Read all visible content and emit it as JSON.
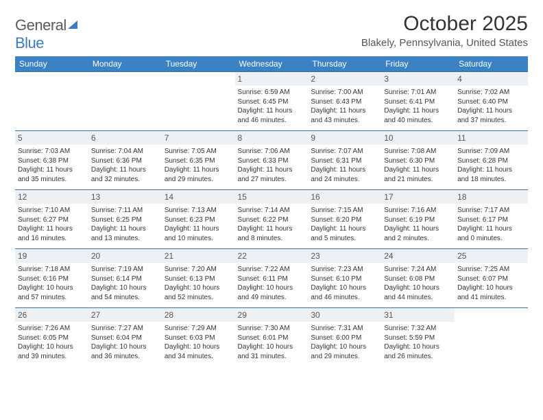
{
  "logo": {
    "text1": "General",
    "text2": "Blue"
  },
  "title": "October 2025",
  "location": "Blakely, Pennsylvania, United States",
  "colors": {
    "header_bg": "#3b82c4",
    "header_text": "#ffffff",
    "row_border": "#3b6fa0",
    "daynum_bg": "#eef1f4",
    "logo_gray": "#5a5a5a",
    "logo_blue": "#3b7bbf"
  },
  "weekdays": [
    "Sunday",
    "Monday",
    "Tuesday",
    "Wednesday",
    "Thursday",
    "Friday",
    "Saturday"
  ],
  "cells": [
    [
      null,
      null,
      null,
      {
        "n": "1",
        "sr": "6:59 AM",
        "ss": "6:45 PM",
        "dl": "11 hours and 46 minutes."
      },
      {
        "n": "2",
        "sr": "7:00 AM",
        "ss": "6:43 PM",
        "dl": "11 hours and 43 minutes."
      },
      {
        "n": "3",
        "sr": "7:01 AM",
        "ss": "6:41 PM",
        "dl": "11 hours and 40 minutes."
      },
      {
        "n": "4",
        "sr": "7:02 AM",
        "ss": "6:40 PM",
        "dl": "11 hours and 37 minutes."
      }
    ],
    [
      {
        "n": "5",
        "sr": "7:03 AM",
        "ss": "6:38 PM",
        "dl": "11 hours and 35 minutes."
      },
      {
        "n": "6",
        "sr": "7:04 AM",
        "ss": "6:36 PM",
        "dl": "11 hours and 32 minutes."
      },
      {
        "n": "7",
        "sr": "7:05 AM",
        "ss": "6:35 PM",
        "dl": "11 hours and 29 minutes."
      },
      {
        "n": "8",
        "sr": "7:06 AM",
        "ss": "6:33 PM",
        "dl": "11 hours and 27 minutes."
      },
      {
        "n": "9",
        "sr": "7:07 AM",
        "ss": "6:31 PM",
        "dl": "11 hours and 24 minutes."
      },
      {
        "n": "10",
        "sr": "7:08 AM",
        "ss": "6:30 PM",
        "dl": "11 hours and 21 minutes."
      },
      {
        "n": "11",
        "sr": "7:09 AM",
        "ss": "6:28 PM",
        "dl": "11 hours and 18 minutes."
      }
    ],
    [
      {
        "n": "12",
        "sr": "7:10 AM",
        "ss": "6:27 PM",
        "dl": "11 hours and 16 minutes."
      },
      {
        "n": "13",
        "sr": "7:11 AM",
        "ss": "6:25 PM",
        "dl": "11 hours and 13 minutes."
      },
      {
        "n": "14",
        "sr": "7:13 AM",
        "ss": "6:23 PM",
        "dl": "11 hours and 10 minutes."
      },
      {
        "n": "15",
        "sr": "7:14 AM",
        "ss": "6:22 PM",
        "dl": "11 hours and 8 minutes."
      },
      {
        "n": "16",
        "sr": "7:15 AM",
        "ss": "6:20 PM",
        "dl": "11 hours and 5 minutes."
      },
      {
        "n": "17",
        "sr": "7:16 AM",
        "ss": "6:19 PM",
        "dl": "11 hours and 2 minutes."
      },
      {
        "n": "18",
        "sr": "7:17 AM",
        "ss": "6:17 PM",
        "dl": "11 hours and 0 minutes."
      }
    ],
    [
      {
        "n": "19",
        "sr": "7:18 AM",
        "ss": "6:16 PM",
        "dl": "10 hours and 57 minutes."
      },
      {
        "n": "20",
        "sr": "7:19 AM",
        "ss": "6:14 PM",
        "dl": "10 hours and 54 minutes."
      },
      {
        "n": "21",
        "sr": "7:20 AM",
        "ss": "6:13 PM",
        "dl": "10 hours and 52 minutes."
      },
      {
        "n": "22",
        "sr": "7:22 AM",
        "ss": "6:11 PM",
        "dl": "10 hours and 49 minutes."
      },
      {
        "n": "23",
        "sr": "7:23 AM",
        "ss": "6:10 PM",
        "dl": "10 hours and 46 minutes."
      },
      {
        "n": "24",
        "sr": "7:24 AM",
        "ss": "6:08 PM",
        "dl": "10 hours and 44 minutes."
      },
      {
        "n": "25",
        "sr": "7:25 AM",
        "ss": "6:07 PM",
        "dl": "10 hours and 41 minutes."
      }
    ],
    [
      {
        "n": "26",
        "sr": "7:26 AM",
        "ss": "6:05 PM",
        "dl": "10 hours and 39 minutes."
      },
      {
        "n": "27",
        "sr": "7:27 AM",
        "ss": "6:04 PM",
        "dl": "10 hours and 36 minutes."
      },
      {
        "n": "28",
        "sr": "7:29 AM",
        "ss": "6:03 PM",
        "dl": "10 hours and 34 minutes."
      },
      {
        "n": "29",
        "sr": "7:30 AM",
        "ss": "6:01 PM",
        "dl": "10 hours and 31 minutes."
      },
      {
        "n": "30",
        "sr": "7:31 AM",
        "ss": "6:00 PM",
        "dl": "10 hours and 29 minutes."
      },
      {
        "n": "31",
        "sr": "7:32 AM",
        "ss": "5:59 PM",
        "dl": "10 hours and 26 minutes."
      },
      null
    ]
  ],
  "labels": {
    "sunrise": "Sunrise:",
    "sunset": "Sunset:",
    "daylight": "Daylight:"
  }
}
